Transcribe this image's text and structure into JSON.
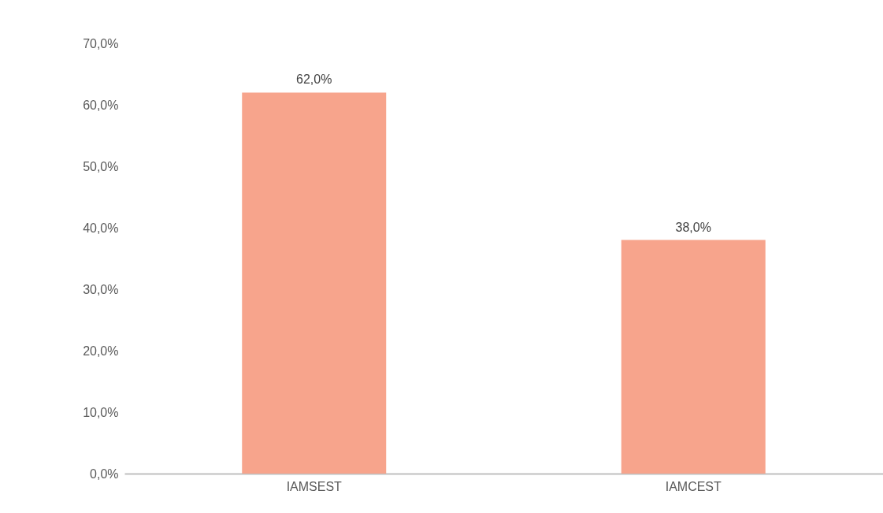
{
  "chart_data": {
    "type": "bar",
    "categories": [
      "IAMSEST",
      "IAMCEST"
    ],
    "values": [
      62,
      38
    ],
    "color": "#f7a48c",
    "value_labels": [
      "62,0%",
      "38,0%"
    ],
    "ylim": [
      0,
      70
    ],
    "yticks": [
      {
        "value": 0,
        "label": "0,0%"
      },
      {
        "value": 10,
        "label": "10,0%"
      },
      {
        "value": 20,
        "label": "20,0%"
      },
      {
        "value": 30,
        "label": "30,0%"
      },
      {
        "value": 40,
        "label": "40,0%"
      },
      {
        "value": 50,
        "label": "50,0%"
      },
      {
        "value": 60,
        "label": "60,0%"
      },
      {
        "value": 70,
        "label": "70,0%"
      }
    ],
    "grid": false
  }
}
